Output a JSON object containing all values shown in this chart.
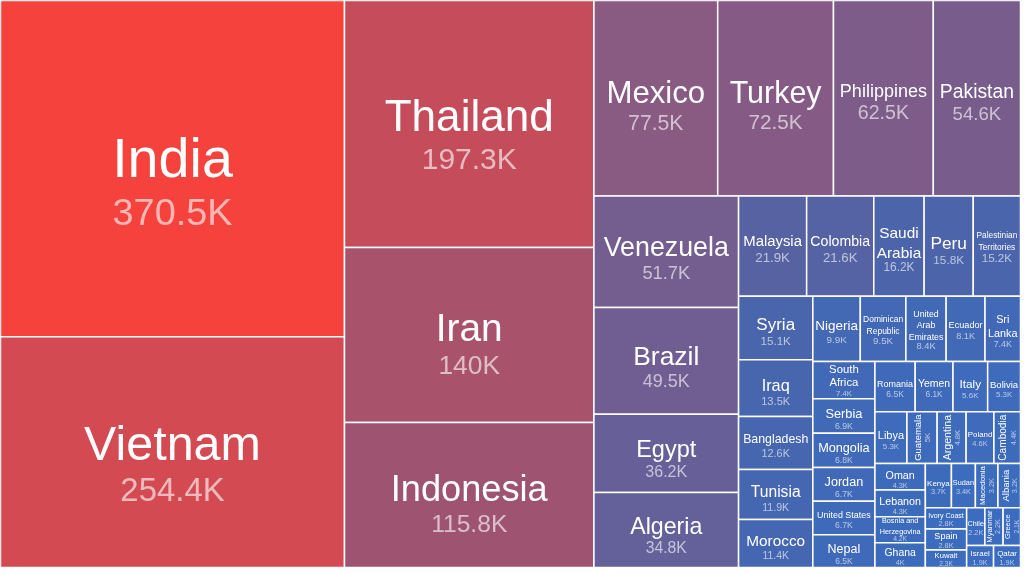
{
  "chart_data": {
    "type": "other",
    "categories": [
      "India",
      "Vietnam",
      "Thailand",
      "Iran",
      "Indonesia",
      "Mexico",
      "Turkey",
      "Philippines",
      "Pakistan",
      "Venezuela",
      "Brazil",
      "Egypt",
      "Algeria",
      "Malaysia",
      "Colombia",
      "Saudi Arabia",
      "Peru",
      "Palestinian Territories",
      "Syria",
      "Iraq",
      "Bangladesh",
      "Tunisia",
      "Morocco",
      "Nigeria",
      "Dominican Republic",
      "United Arab Emirates",
      "Ecuador",
      "Sri Lanka",
      "South Africa",
      "Serbia",
      "Mongolia",
      "Jordan",
      "United States",
      "Nepal",
      "Romania",
      "Yemen",
      "Italy",
      "Bolivia",
      "Libya",
      "Guatemala",
      "Argentina",
      "Poland",
      "Cambodia",
      "Oman",
      "Lebanon",
      "Bosnia and Herzegovina",
      "Ghana",
      "Kenya",
      "Sudan",
      "Macedonia",
      "Albania",
      "Ivory Coast",
      "Spain",
      "Kuwait",
      "Chile",
      "Myanmar",
      "Greece",
      "Israel",
      "Qatar"
    ],
    "values": [
      370.5,
      254.4,
      197.3,
      140,
      115.8,
      77.5,
      72.5,
      62.5,
      54.6,
      51.7,
      49.5,
      36.2,
      34.8,
      21.9,
      21.6,
      16.2,
      15.8,
      15.2,
      15.1,
      13.5,
      12.6,
      11.9,
      11.4,
      9.9,
      9.5,
      8.4,
      8.1,
      7.4,
      7.4,
      6.9,
      6.8,
      6.7,
      6.7,
      6.5,
      6.5,
      6.1,
      5.6,
      5.3,
      5.3,
      5,
      4.8,
      4.6,
      4.4,
      4.3,
      4.3,
      4.2,
      4,
      3.7,
      3.4,
      3.2,
      3.2,
      2.8,
      2.8,
      2.3,
      2.2,
      2.2,
      2.1,
      1.9,
      1.9
    ],
    "value_labels": [
      "370.5K",
      "254.4K",
      "197.3K",
      "140K",
      "115.8K",
      "77.5K",
      "72.5K",
      "62.5K",
      "54.6K",
      "51.7K",
      "49.5K",
      "36.2K",
      "34.8K",
      "21.9K",
      "21.6K",
      "16.2K",
      "15.8K",
      "15.2K",
      "15.1K",
      "13.5K",
      "12.6K",
      "11.9K",
      "11.4K",
      "9.9K",
      "9.5K",
      "8.4K",
      "8.1K",
      "7.4K",
      "7.4K",
      "6.9K",
      "6.8K",
      "6.7K",
      "6.7K",
      "6.5K",
      "6.5K",
      "6.1K",
      "5.6K",
      "5.3K",
      "5.3K",
      "5K",
      "4.8K",
      "4.6K",
      "4.4K",
      "4.3K",
      "4.3K",
      "4.2K",
      "4K",
      "3.7K",
      "3.4K",
      "3.2K",
      "3.2K",
      "2.8K",
      "2.8K",
      "2.3K",
      "2.2K",
      "2.2K",
      "2.1K",
      "1.9K",
      "1.9K"
    ],
    "colors": [
      "#f5423c",
      "#d44a52",
      "#c54c5b",
      "#a8526b",
      "#9e5471",
      "#895a82",
      "#855b85",
      "#7d5c89",
      "#785d8c",
      "#745e8f",
      "#705e92",
      "#665f98",
      "#63609a",
      "#5662a2",
      "#5562a3",
      "#4c64a9",
      "#4b64aa",
      "#4a65ab",
      "#4965ac",
      "#4766ae",
      "#4667b0",
      "#4567b1",
      "#4567b2",
      "#4368b4",
      "#4368b5",
      "#4269b6",
      "#4269b6",
      "#4169b7",
      "#4169b7",
      "#406ab8",
      "#406ab9",
      "#406ab9",
      "#3f6ab9",
      "#3f6ab9",
      "#3f6ab9",
      "#3f6ab9",
      "#3e6bbb",
      "#3e6bbb",
      "#3e6bbb",
      "#3e6bbb",
      "#3e6bbb",
      "#3e6bbb",
      "#3d6bbc",
      "#3d6bbc",
      "#3d6bbc",
      "#3d6bbc",
      "#3d6bbc",
      "#3d6bbc",
      "#3c6cbe",
      "#3c6cbe",
      "#3c6cbe",
      "#3c6cbe",
      "#3c6cbe",
      "#3c6cbe",
      "#3b6cc0",
      "#3b6cc0",
      "#3b6cc0",
      "#3b6cc0",
      "#3b6cc0"
    ]
  }
}
